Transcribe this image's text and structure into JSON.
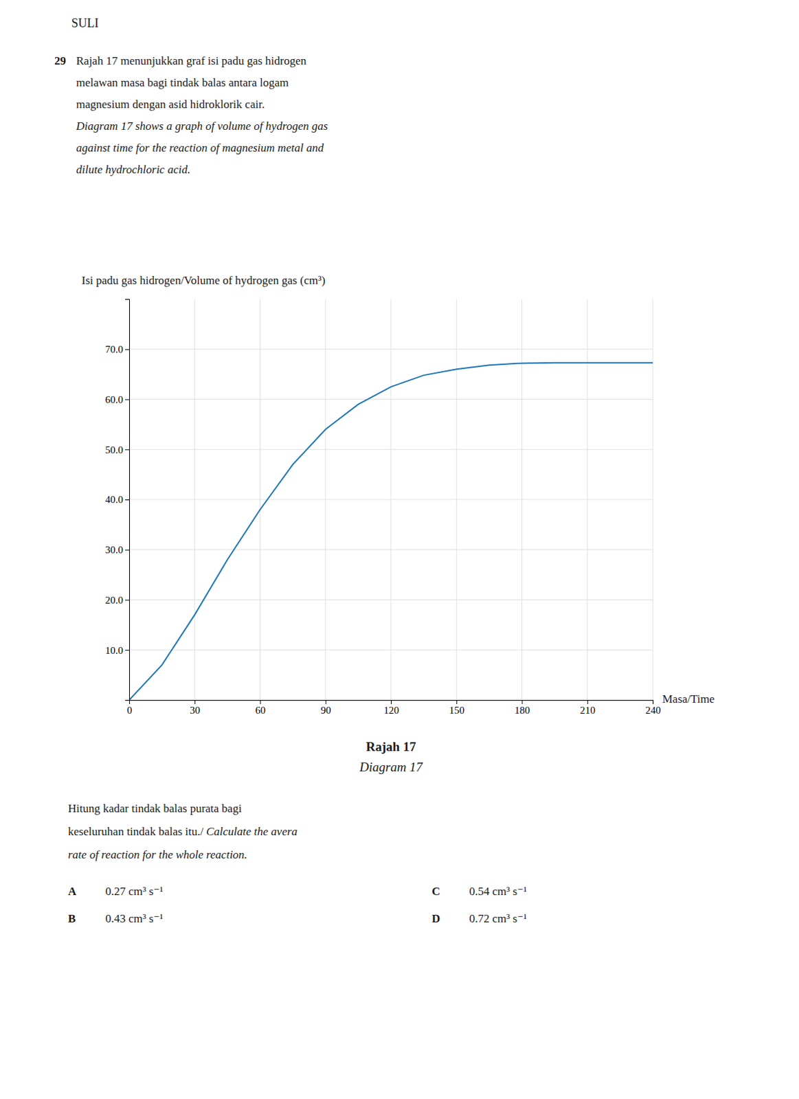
{
  "header": "SULI",
  "question_number": "29",
  "question_lines": [
    "Rajah 17 menunjukkan graf isi padu gas hidrogen",
    "melawan masa bagi tindak balas antara logam",
    "magnesium dengan asid hidroklorik cair.",
    "Diagram 17 shows a graph of volume of hydrogen gas",
    "against time for the reaction of magnesium metal and",
    "dilute hydrochloric acid."
  ],
  "question2_lines": [
    [
      "Hitung kadar tindak balas purata bagi"
    ],
    [
      "keseluruhan tindak balas itu./",
      "Calculate the avera"
    ],
    [
      "rate of reaction for the whole reaction."
    ]
  ],
  "options": [
    {
      "label": "A",
      "text": "0.27 cm³ s⁻¹"
    },
    {
      "label": "B",
      "text": "0.43 cm³ s⁻¹"
    },
    {
      "label": "C",
      "text": "0.54 cm³ s⁻¹"
    },
    {
      "label": "D",
      "text": "0.72 cm³ s⁻¹"
    }
  ],
  "chart_data": {
    "type": "line",
    "title": "Rajah 17",
    "subtitle": "Diagram 17",
    "x_label": "Masa/Time",
    "y_label": "Isi padu gas hidrogen/Volume of hydrogen gas (cm³)",
    "x": [
      0,
      15,
      30,
      45,
      60,
      75,
      90,
      105,
      120,
      135,
      150,
      165,
      180,
      195,
      210,
      225,
      240
    ],
    "values": [
      0,
      7,
      17,
      28,
      38,
      47,
      54,
      59,
      62.5,
      64.8,
      66.0,
      66.8,
      67.2,
      67.3,
      67.3,
      67.3,
      67.3
    ],
    "xlim": [
      0,
      240
    ],
    "ylim": [
      0,
      80
    ],
    "xticks": [
      0,
      30,
      60,
      90,
      120,
      150,
      180,
      210,
      240
    ],
    "yticks": [
      {
        "value": 10,
        "label": "10.0"
      },
      {
        "value": 20,
        "label": "20.0"
      },
      {
        "value": 30,
        "label": "30.0"
      },
      {
        "value": 40,
        "label": "40.0"
      },
      {
        "value": 50,
        "label": "50.0"
      },
      {
        "value": 60,
        "label": "60.0"
      },
      {
        "value": 70,
        "label": "70.0"
      }
    ],
    "grid": true
  }
}
